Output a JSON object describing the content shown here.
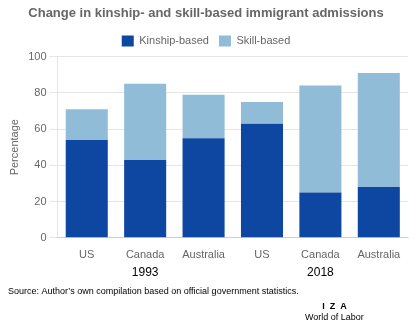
{
  "chart_data": {
    "type": "bar",
    "title": "Change in kinship- and skill-based immigrant admissions",
    "ylabel": "Percentage",
    "categories": [
      "US",
      "Canada",
      "Australia",
      "US",
      "Canada",
      "Australia"
    ],
    "group_labels": [
      "1993",
      "2018"
    ],
    "series": [
      {
        "name": "Kinship-based",
        "color": "#0d47a1",
        "values": [
          54,
          43,
          55,
          63,
          25,
          28
        ]
      },
      {
        "name": "Skill-based",
        "color": "#90bcd8",
        "values": [
          17,
          42,
          24,
          12,
          59,
          63
        ]
      }
    ],
    "stacked": true,
    "ylim": [
      0,
      100
    ],
    "yticks": [
      0,
      20,
      40,
      60,
      80,
      100
    ],
    "grid": true,
    "legend": "top",
    "annotations": [
      "Source: Author’s own compilation based on official government statistics.",
      "I  Z  A",
      "World of Labor"
    ]
  }
}
